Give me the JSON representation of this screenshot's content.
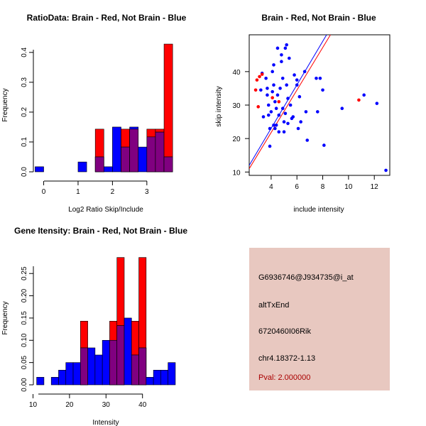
{
  "colors": {
    "brain": "#ff0000",
    "not_brain": "#0000ff",
    "overlap": "#800080",
    "panel_bg": "#e8c8c0",
    "pval_text": "#aa0000"
  },
  "chart_data": [
    {
      "id": "ratio",
      "type": "bar",
      "title": "RatioData: Brain - Red, Not Brain - Blue",
      "xlabel": "Log2 Ratio Skip/Include",
      "ylabel": "Frequency",
      "xlim": [
        -0.3,
        3.85
      ],
      "ylim": [
        0,
        0.44
      ],
      "xticks": [
        0,
        1,
        2,
        3
      ],
      "yticks": [
        0.0,
        0.1,
        0.2,
        0.3,
        0.4
      ],
      "ytick_labels": [
        "0.0",
        "0.1",
        "0.2",
        "0.3",
        "0.4"
      ],
      "bin_starts": [
        -0.25,
        0.0,
        0.25,
        0.5,
        0.75,
        1.0,
        1.25,
        1.5,
        1.75,
        2.0,
        2.25,
        2.5,
        2.75,
        3.0,
        3.25,
        3.5
      ],
      "bin_width": 0.25,
      "series": [
        {
          "name": "Brain",
          "color": "#ff0000",
          "values": [
            0,
            0,
            0,
            0,
            0,
            0,
            0,
            0.143,
            0,
            0,
            0.143,
            0.143,
            0,
            0.143,
            0.143,
            0.428
          ]
        },
        {
          "name": "Not Brain",
          "color": "#0000ff",
          "values": [
            0.017,
            0,
            0,
            0,
            0,
            0.033,
            0,
            0.05,
            0.017,
            0.15,
            0.083,
            0.15,
            0.083,
            0.117,
            0.133,
            0.05
          ]
        }
      ]
    },
    {
      "id": "scatter",
      "type": "scatter",
      "title": "Brain - Red, Not Brain - Blue",
      "xlabel": "include intensity",
      "ylabel": "skip intensity",
      "xlim": [
        2.3,
        13.2
      ],
      "ylim": [
        9,
        51
      ],
      "xticks": [
        4,
        6,
        8,
        10,
        12
      ],
      "yticks": [
        10,
        20,
        30,
        40
      ],
      "series": [
        {
          "name": "Brain",
          "color": "#ff0000",
          "points": [
            [
              2.8,
              34.5
            ],
            [
              2.9,
              37.5
            ],
            [
              3.0,
              29.5
            ],
            [
              3.1,
              38.5
            ],
            [
              3.3,
              39.2
            ],
            [
              4.1,
              32.2
            ],
            [
              4.6,
              31.0
            ],
            [
              10.8,
              31.5
            ]
          ]
        },
        {
          "name": "Not Brain",
          "color": "#0000ff",
          "points": [
            [
              3.2,
              34.5
            ],
            [
              3.3,
              39.5
            ],
            [
              3.4,
              26.5
            ],
            [
              3.6,
              38.0
            ],
            [
              3.7,
              35.0
            ],
            [
              3.7,
              33.0
            ],
            [
              3.8,
              27.0
            ],
            [
              3.8,
              30.0
            ],
            [
              3.9,
              17.7
            ],
            [
              4.0,
              28.0
            ],
            [
              4.1,
              40.0
            ],
            [
              4.1,
              34.0
            ],
            [
              4.2,
              36.0
            ],
            [
              4.2,
              42.0
            ],
            [
              4.2,
              24.0
            ],
            [
              4.3,
              31.0
            ],
            [
              4.3,
              23.0
            ],
            [
              4.4,
              29.0
            ],
            [
              4.5,
              33.0
            ],
            [
              4.5,
              47.0
            ],
            [
              4.6,
              27.0
            ],
            [
              4.6,
              22.0
            ],
            [
              4.7,
              35.0
            ],
            [
              4.8,
              45.0
            ],
            [
              4.8,
              43.0
            ],
            [
              4.9,
              38.0
            ],
            [
              4.9,
              29.0
            ],
            [
              5.0,
              25.0
            ],
            [
              5.0,
              22.0
            ],
            [
              5.1,
              47.0
            ],
            [
              5.2,
              48.0
            ],
            [
              5.2,
              36.0
            ],
            [
              5.3,
              32.0
            ],
            [
              5.3,
              24.5
            ],
            [
              5.4,
              44.0
            ],
            [
              5.5,
              30.0
            ],
            [
              5.6,
              26.0
            ],
            [
              5.7,
              26.5
            ],
            [
              5.8,
              39.0
            ],
            [
              6.0,
              36.0
            ],
            [
              6.1,
              23.0
            ],
            [
              6.2,
              32.5
            ],
            [
              6.3,
              25.0
            ],
            [
              6.6,
              40.0
            ],
            [
              6.7,
              28.0
            ],
            [
              6.8,
              19.5
            ],
            [
              7.5,
              38.0
            ],
            [
              7.6,
              28.0
            ],
            [
              7.8,
              38.0
            ],
            [
              8.0,
              34.5
            ],
            [
              8.1,
              18.0
            ],
            [
              9.5,
              29.0
            ],
            [
              11.2,
              33.0
            ],
            [
              12.2,
              30.5
            ],
            [
              12.9,
              10.5
            ],
            [
              3.9,
              23.0
            ],
            [
              5.1,
              27.5
            ],
            [
              4.4,
              24.0
            ],
            [
              6.0,
              37.5
            ]
          ]
        }
      ],
      "fit_lines": [
        {
          "name": "Not Brain fit",
          "color": "#0000ff",
          "x1": 2.3,
          "y1": 12.0,
          "x2": 8.3,
          "y2": 51.0
        },
        {
          "name": "Brain fit",
          "color": "#ff0000",
          "x1": 2.3,
          "y1": 11.0,
          "x2": 8.6,
          "y2": 51.0
        }
      ]
    },
    {
      "id": "intensity",
      "type": "bar",
      "title": "Gene Itensity: Brain - Red, Not Brain - Blue",
      "xlabel": "Intensity",
      "ylabel": "Frequency",
      "xlim": [
        10.1,
        49.2
      ],
      "ylim": [
        0,
        0.295
      ],
      "xticks": [
        10,
        20,
        30,
        40
      ],
      "yticks": [
        0.0,
        0.05,
        0.1,
        0.15,
        0.2,
        0.25
      ],
      "ytick_labels": [
        "0.00",
        "0.05",
        "0.10",
        "0.15",
        "0.20",
        "0.25"
      ],
      "bin_starts": [
        11,
        13,
        15,
        17,
        19,
        21,
        23,
        25,
        27,
        29,
        31,
        33,
        35,
        37,
        39,
        41,
        43,
        45,
        47
      ],
      "bin_width": 2,
      "series": [
        {
          "name": "Brain",
          "color": "#ff0000",
          "values": [
            0,
            0,
            0,
            0,
            0,
            0,
            0.143,
            0,
            0,
            0,
            0.143,
            0.286,
            0,
            0.143,
            0.286,
            0,
            0,
            0,
            0
          ]
        },
        {
          "name": "Not Brain",
          "color": "#0000ff",
          "values": [
            0.017,
            0,
            0.017,
            0.033,
            0.05,
            0.05,
            0.083,
            0.083,
            0.067,
            0.1,
            0.1,
            0.133,
            0.15,
            0.067,
            0.083,
            0.017,
            0.033,
            0.033,
            0.05
          ]
        }
      ]
    }
  ],
  "info": {
    "probe": "G6936746@J934735@i_at",
    "event_type": "altTxEnd",
    "gene": "6720460I06Rik",
    "location": "chr4.18372-1.13",
    "pval": "Pval: 2.000000"
  }
}
